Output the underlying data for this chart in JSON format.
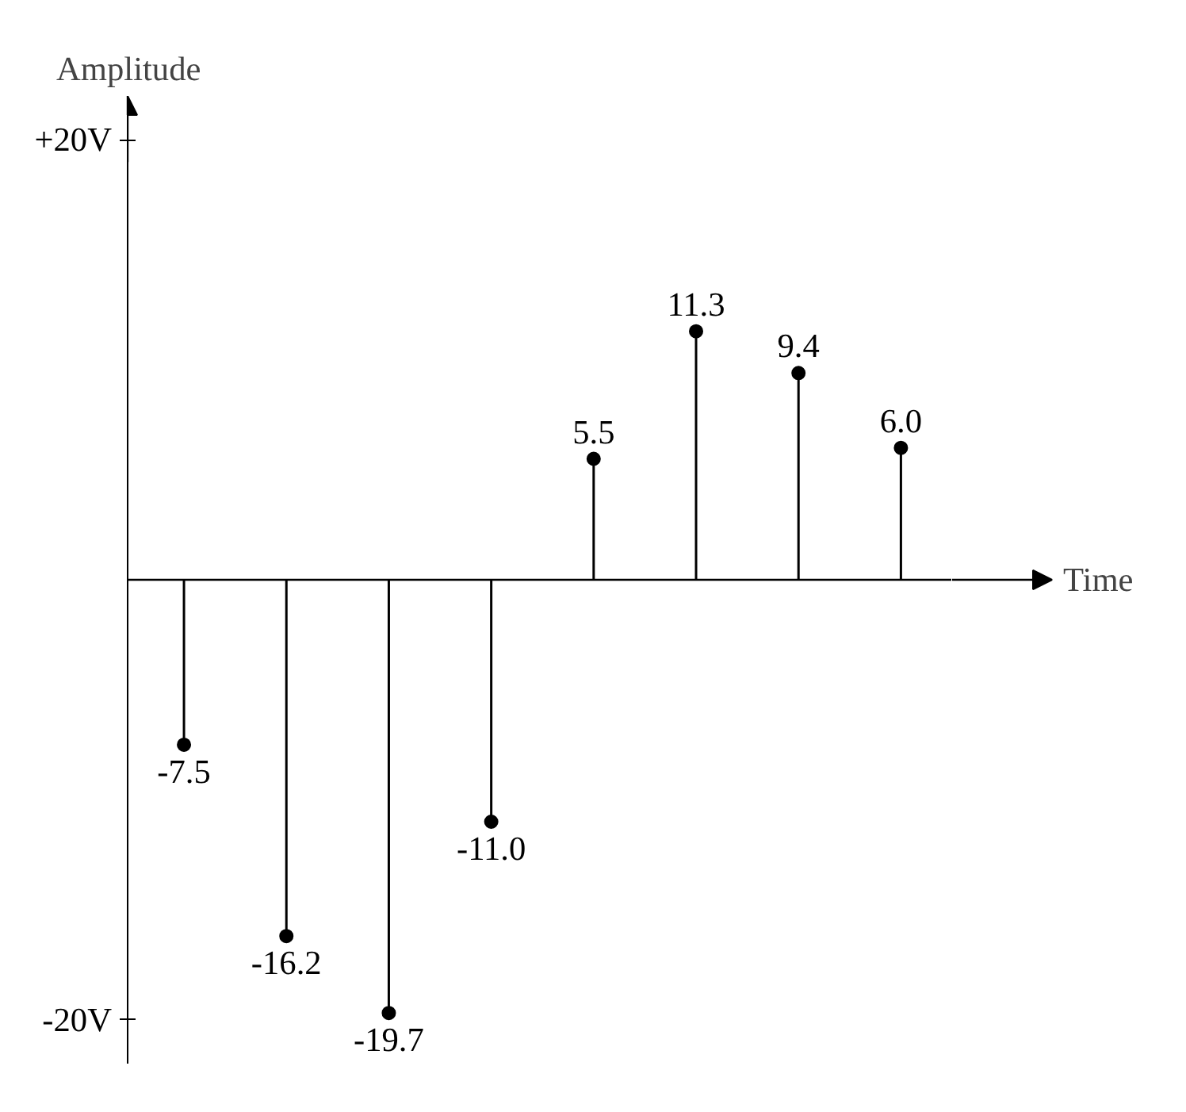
{
  "chart_data": {
    "type": "lollipop",
    "xlabel": "Time",
    "ylabel": "Amplitude",
    "categories": [
      null,
      null,
      null,
      null,
      null,
      null,
      null,
      null
    ],
    "series": [
      {
        "color": "#000000",
        "values": [
          -7.5,
          -16.2,
          -19.7,
          -11.0,
          5.5,
          11.3,
          9.4,
          6.0
        ],
        "value_labels": [
          "-7.5",
          "-16.2",
          "-19.7",
          "-11.0",
          "5.5",
          "11.3",
          "9.4",
          "6.0"
        ]
      }
    ],
    "ylim": [
      -22,
      22
    ],
    "yticks": [
      {
        "value": -20,
        "label": "-20V"
      },
      {
        "value": 20,
        "label": "+20V"
      }
    ],
    "tick_labels": "y",
    "grid": false,
    "marker": "circle"
  }
}
